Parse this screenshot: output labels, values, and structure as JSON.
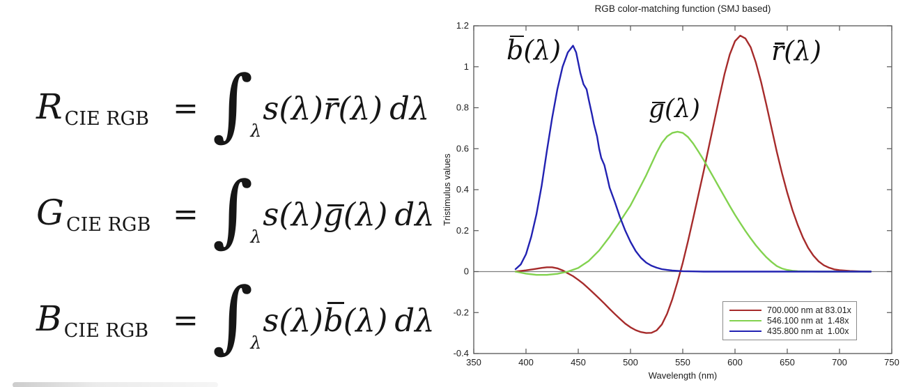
{
  "equations": [
    {
      "lhs": "R",
      "lhs_sub": "CIE RGB",
      "equals": "=",
      "integral": "∫",
      "integral_sub": "λ",
      "pre": "s(λ)",
      "cmf_letter": "r",
      "mid": "(λ)",
      "differential": "dλ"
    },
    {
      "lhs": "G",
      "lhs_sub": "CIE RGB",
      "equals": "=",
      "integral": "∫",
      "integral_sub": "λ",
      "pre": "s(λ)",
      "cmf_letter": "g",
      "mid": "(λ)",
      "differential": "dλ"
    },
    {
      "lhs": "B",
      "lhs_sub": "CIE RGB",
      "equals": "=",
      "integral": "∫",
      "integral_sub": "λ",
      "pre": "s(λ)",
      "cmf_letter": "b",
      "mid": "(λ)",
      "differential": "dλ"
    }
  ],
  "chart_data": {
    "type": "line",
    "title": "RGB color-matching function (SMJ based)",
    "xlabel": "Wavelength (nm)",
    "ylabel": "Tristimulus values",
    "xlim": [
      350,
      750
    ],
    "ylim": [
      -0.4,
      1.2
    ],
    "grid": false,
    "zero_line": true,
    "legend_position": "lower right",
    "x_tick_values": [
      350,
      400,
      450,
      500,
      550,
      600,
      650,
      700,
      750
    ],
    "x_tick_labels": [
      "350",
      "400",
      "450",
      "500",
      "550",
      "600",
      "650",
      "700",
      "750"
    ],
    "y_tick_values": [
      -0.4,
      -0.2,
      0,
      0.2,
      0.4,
      0.6,
      0.8,
      1,
      1.2
    ],
    "y_tick_labels": [
      "-0.4",
      "-0.2",
      "0",
      "0.2",
      "0.4",
      "0.6",
      "0.8",
      "1",
      "1.2"
    ],
    "annotations": [
      {
        "name": "bbar-label",
        "letter": "b",
        "suffix": "(λ)"
      },
      {
        "name": "gbar-label",
        "letter": "g",
        "suffix": "(λ)"
      },
      {
        "name": "rbar-label",
        "letter": "r",
        "suffix": "(λ)"
      }
    ],
    "legend": [
      {
        "label": "700.000 nm at 83.01x",
        "color": "#a62b2b"
      },
      {
        "label": "546.100 nm at  1.48x",
        "color": "#82d24f"
      },
      {
        "label": "435.800 nm at  1.00x",
        "color": "#2222b2"
      }
    ],
    "series": [
      {
        "name": "r̄(λ) 700.000 nm at 83.01x",
        "color": "#a62b2b",
        "points": [
          [
            390,
            0
          ],
          [
            395,
            0.003
          ],
          [
            400,
            0.006
          ],
          [
            405,
            0.01
          ],
          [
            410,
            0.014
          ],
          [
            415,
            0.018
          ],
          [
            420,
            0.021
          ],
          [
            425,
            0.021
          ],
          [
            430,
            0.016
          ],
          [
            435,
            0.006
          ],
          [
            440,
            -0.008
          ],
          [
            445,
            -0.022
          ],
          [
            450,
            -0.04
          ],
          [
            455,
            -0.06
          ],
          [
            460,
            -0.083
          ],
          [
            465,
            -0.107
          ],
          [
            470,
            -0.131
          ],
          [
            475,
            -0.156
          ],
          [
            480,
            -0.182
          ],
          [
            485,
            -0.207
          ],
          [
            490,
            -0.231
          ],
          [
            495,
            -0.254
          ],
          [
            500,
            -0.272
          ],
          [
            505,
            -0.286
          ],
          [
            510,
            -0.295
          ],
          [
            515,
            -0.3
          ],
          [
            520,
            -0.299
          ],
          [
            525,
            -0.287
          ],
          [
            530,
            -0.258
          ],
          [
            535,
            -0.206
          ],
          [
            540,
            -0.135
          ],
          [
            545,
            -0.05
          ],
          [
            550,
            0.043
          ],
          [
            555,
            0.148
          ],
          [
            560,
            0.26
          ],
          [
            565,
            0.375
          ],
          [
            570,
            0.49
          ],
          [
            575,
            0.61
          ],
          [
            580,
            0.73
          ],
          [
            585,
            0.85
          ],
          [
            590,
            0.965
          ],
          [
            595,
            1.06
          ],
          [
            600,
            1.125
          ],
          [
            605,
            1.152
          ],
          [
            610,
            1.138
          ],
          [
            615,
            1.095
          ],
          [
            620,
            1.02
          ],
          [
            625,
            0.925
          ],
          [
            630,
            0.815
          ],
          [
            635,
            0.7
          ],
          [
            640,
            0.585
          ],
          [
            645,
            0.48
          ],
          [
            650,
            0.385
          ],
          [
            655,
            0.3
          ],
          [
            660,
            0.228
          ],
          [
            665,
            0.166
          ],
          [
            670,
            0.116
          ],
          [
            675,
            0.078
          ],
          [
            680,
            0.05
          ],
          [
            685,
            0.031
          ],
          [
            690,
            0.019
          ],
          [
            695,
            0.011
          ],
          [
            700,
            0.007
          ],
          [
            710,
            0.003
          ],
          [
            720,
            0.001
          ],
          [
            730,
            0
          ]
        ]
      },
      {
        "name": "ḡ(λ) 546.100 nm at 1.48x",
        "color": "#82d24f",
        "points": [
          [
            390,
            0
          ],
          [
            395,
            -0.005
          ],
          [
            400,
            -0.01
          ],
          [
            410,
            -0.016
          ],
          [
            420,
            -0.016
          ],
          [
            430,
            -0.011
          ],
          [
            440,
            0
          ],
          [
            450,
            0.018
          ],
          [
            460,
            0.052
          ],
          [
            470,
            0.103
          ],
          [
            480,
            0.17
          ],
          [
            490,
            0.245
          ],
          [
            500,
            0.323
          ],
          [
            510,
            0.42
          ],
          [
            515,
            0.47
          ],
          [
            520,
            0.525
          ],
          [
            525,
            0.58
          ],
          [
            530,
            0.628
          ],
          [
            535,
            0.66
          ],
          [
            540,
            0.677
          ],
          [
            545,
            0.683
          ],
          [
            550,
            0.677
          ],
          [
            555,
            0.657
          ],
          [
            560,
            0.625
          ],
          [
            565,
            0.586
          ],
          [
            570,
            0.545
          ],
          [
            575,
            0.5
          ],
          [
            580,
            0.455
          ],
          [
            585,
            0.41
          ],
          [
            590,
            0.365
          ],
          [
            595,
            0.32
          ],
          [
            600,
            0.277
          ],
          [
            605,
            0.237
          ],
          [
            610,
            0.198
          ],
          [
            615,
            0.162
          ],
          [
            620,
            0.128
          ],
          [
            625,
            0.098
          ],
          [
            630,
            0.07
          ],
          [
            635,
            0.047
          ],
          [
            640,
            0.027
          ],
          [
            645,
            0.015
          ],
          [
            650,
            0.008
          ],
          [
            655,
            0.004
          ],
          [
            660,
            0.002
          ],
          [
            670,
            0.001
          ],
          [
            680,
            0
          ],
          [
            700,
            0
          ],
          [
            730,
            0
          ]
        ]
      },
      {
        "name": "b̄(λ) 435.800 nm at 1.00x",
        "color": "#2222b2",
        "points": [
          [
            390,
            0.012
          ],
          [
            395,
            0.035
          ],
          [
            400,
            0.085
          ],
          [
            405,
            0.17
          ],
          [
            410,
            0.28
          ],
          [
            415,
            0.42
          ],
          [
            420,
            0.59
          ],
          [
            425,
            0.75
          ],
          [
            430,
            0.89
          ],
          [
            435,
            1.0
          ],
          [
            440,
            1.07
          ],
          [
            445,
            1.103
          ],
          [
            448,
            1.07
          ],
          [
            450,
            1.02
          ],
          [
            452,
            0.97
          ],
          [
            455,
            0.915
          ],
          [
            458,
            0.89
          ],
          [
            460,
            0.84
          ],
          [
            463,
            0.77
          ],
          [
            465,
            0.72
          ],
          [
            468,
            0.66
          ],
          [
            470,
            0.6
          ],
          [
            472,
            0.555
          ],
          [
            475,
            0.52
          ],
          [
            478,
            0.455
          ],
          [
            480,
            0.41
          ],
          [
            485,
            0.34
          ],
          [
            490,
            0.265
          ],
          [
            495,
            0.2
          ],
          [
            500,
            0.145
          ],
          [
            505,
            0.1
          ],
          [
            510,
            0.067
          ],
          [
            515,
            0.044
          ],
          [
            520,
            0.029
          ],
          [
            525,
            0.019
          ],
          [
            530,
            0.012
          ],
          [
            535,
            0.008
          ],
          [
            540,
            0.005
          ],
          [
            550,
            0.002
          ],
          [
            560,
            0.001
          ],
          [
            570,
            0
          ],
          [
            600,
            0
          ],
          [
            650,
            0
          ],
          [
            700,
            0
          ],
          [
            730,
            0
          ]
        ]
      }
    ]
  }
}
